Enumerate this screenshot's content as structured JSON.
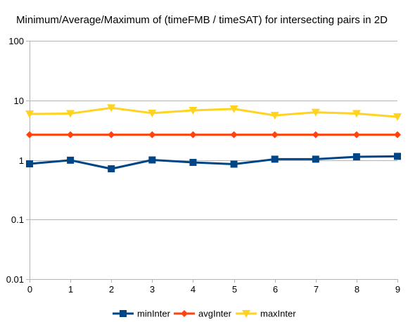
{
  "chart_data": {
    "type": "line",
    "title": "Minimum/Average/Maximum of (timeFMB / timeSAT) for intersecting pairs in 2D",
    "xlabel": "",
    "ylabel": "",
    "y_scale": "log",
    "ylim": [
      0.01,
      100
    ],
    "y_ticks": [
      "100",
      "10",
      "1",
      "0.1",
      "0.01"
    ],
    "y_tick_values": [
      100,
      10,
      1,
      0.1,
      0.01
    ],
    "x": [
      0,
      1,
      2,
      3,
      4,
      5,
      6,
      7,
      8,
      9
    ],
    "x_ticks": [
      "0",
      "1",
      "2",
      "3",
      "4",
      "5",
      "6",
      "7",
      "8",
      "9"
    ],
    "grid": "horizontal",
    "legend_position": "bottom",
    "series": [
      {
        "name": "minInter",
        "color": "#004586",
        "marker": "square",
        "values": [
          0.86,
          0.99,
          0.71,
          1.0,
          0.91,
          0.85,
          1.03,
          1.03,
          1.13,
          1.15
        ]
      },
      {
        "name": "avgInter",
        "color": "#ff420e",
        "marker": "diamond",
        "values": [
          2.65,
          2.65,
          2.65,
          2.65,
          2.65,
          2.65,
          2.65,
          2.65,
          2.65,
          2.65
        ]
      },
      {
        "name": "maxInter",
        "color": "#ffd320",
        "marker": "triangle-down",
        "values": [
          5.9,
          6.0,
          7.5,
          6.1,
          6.8,
          7.2,
          5.6,
          6.3,
          6.0,
          5.3
        ]
      }
    ]
  }
}
